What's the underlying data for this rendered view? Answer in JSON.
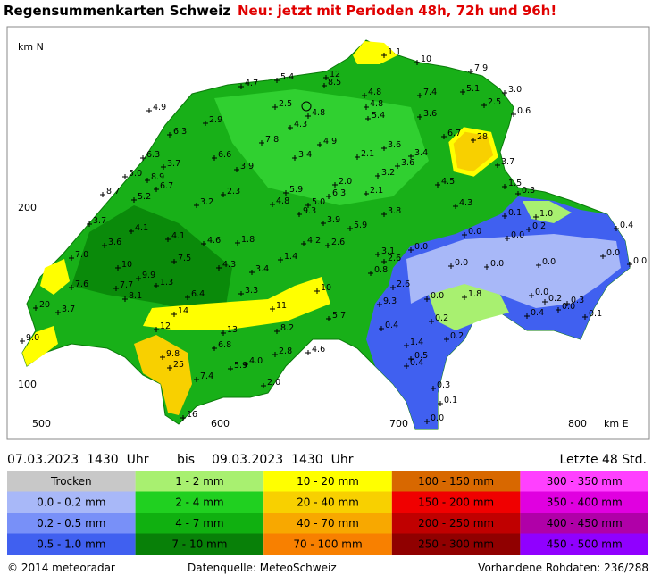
{
  "header": {
    "title": "Regensummenkarten Schweiz",
    "notice": "Neu: jetzt mit Perioden 48h, 72h und 96h!"
  },
  "map": {
    "axis_labels": {
      "north": "km N",
      "east": "km E",
      "y_ticks": [
        "200",
        "100"
      ],
      "x_ticks": [
        "500",
        "600",
        "700",
        "800"
      ]
    },
    "stations": [
      "1.1",
      "10",
      "7.9",
      "12",
      "8.5",
      "5.4",
      "4.7",
      "3.0",
      "5.1",
      "7.4",
      "4.8",
      "4.8",
      "2.5",
      "0.6",
      "2.5",
      "4.8",
      "4.9",
      "5.4",
      "3.6",
      "4.3",
      "2.9",
      "6.3",
      "7.8",
      "4.9",
      "3.6",
      "6.7",
      "28",
      "6.3",
      "6.6",
      "3.7",
      "3.9",
      "3.4",
      "2.1",
      "3.6",
      "3.4",
      "3.2",
      "3.7",
      "5.0",
      "8.9",
      "6.7",
      "4.5",
      "2.0",
      "1.5",
      "0.3",
      "8.7",
      "5.9",
      "6.3",
      "2.1",
      "5.2",
      "3.2",
      "2.3",
      "4.8",
      "5.0",
      "9.3",
      "4.3",
      "0.1",
      "1.0",
      "3.7",
      "3.8",
      "3.9",
      "5.9",
      "0.2",
      "0.4",
      "4.1",
      "0.0",
      "0.0",
      "4.1",
      "4.6",
      "1.8",
      "4.2",
      "2.6",
      "3.6",
      "0.0",
      "3.1",
      "2.6",
      "0.0",
      "0.0",
      "7.0",
      "7.5",
      "1.4",
      "0.0",
      "0.0",
      "0.0",
      "4.3",
      "3.4",
      "10",
      "0.8",
      "9.9",
      "7.6",
      "7.7",
      "1.3",
      "10",
      "2.6",
      "0.0",
      "8.1",
      "6.4",
      "3.3",
      "1.8",
      "0.0",
      "0.2",
      "0.3",
      "0.0",
      "20",
      "3.7",
      "14",
      "11",
      "9.3",
      "0.4",
      "0.1",
      "5.7",
      "0.2",
      "12",
      "13",
      "8.2",
      "0.4",
      "9.0",
      "0.2",
      "6.8",
      "4.6",
      "1.4",
      "2.8",
      "9.8",
      "0.5",
      "0.4",
      "25",
      "4.0",
      "5.9",
      "7.4",
      "2.0",
      "0.3",
      "0.1",
      "16",
      "0.0"
    ]
  },
  "period": {
    "from": "07.03.2023  1430  Uhr",
    "bis": "bis",
    "to": "09.03.2023  1430  Uhr",
    "window": "Letzte 48 Std."
  },
  "legend": [
    {
      "label": "Trocken",
      "color": "#c8c8c8"
    },
    {
      "label": "1 - 2 mm",
      "color": "#a8f070"
    },
    {
      "label": "10 - 20 mm",
      "color": "#ffff00"
    },
    {
      "label": "100 - 150 mm",
      "color": "#d86800"
    },
    {
      "label": "300 - 350 mm",
      "color": "#ff40ff"
    },
    {
      "label": "0.0 - 0.2 mm",
      "color": "#a8b8f8"
    },
    {
      "label": "2 - 4 mm",
      "color": "#20d020"
    },
    {
      "label": "20 - 40 mm",
      "color": "#f8d000"
    },
    {
      "label": "150 - 200 mm",
      "color": "#f00000"
    },
    {
      "label": "350 - 400 mm",
      "color": "#e000e0"
    },
    {
      "label": "0.2 - 0.5 mm",
      "color": "#7890f8"
    },
    {
      "label": "4 - 7 mm",
      "color": "#10b010"
    },
    {
      "label": "40 - 70 mm",
      "color": "#f8a800"
    },
    {
      "label": "200 - 250 mm",
      "color": "#c00000"
    },
    {
      "label": "400 - 450 mm",
      "color": "#b000a8"
    },
    {
      "label": "0.5 - 1.0 mm",
      "color": "#4060f0"
    },
    {
      "label": "7 - 10 mm",
      "color": "#088008"
    },
    {
      "label": "70 - 100 mm",
      "color": "#f88000"
    },
    {
      "label": "250 - 300 mm",
      "color": "#900000"
    },
    {
      "label": "450 - 500 mm",
      "color": "#9000ff"
    }
  ],
  "footer": {
    "copyright": "© 2014  meteoradar",
    "source": "Datenquelle: MeteoSchweiz",
    "raw": "Vorhandene Rohdaten: 236/288"
  }
}
